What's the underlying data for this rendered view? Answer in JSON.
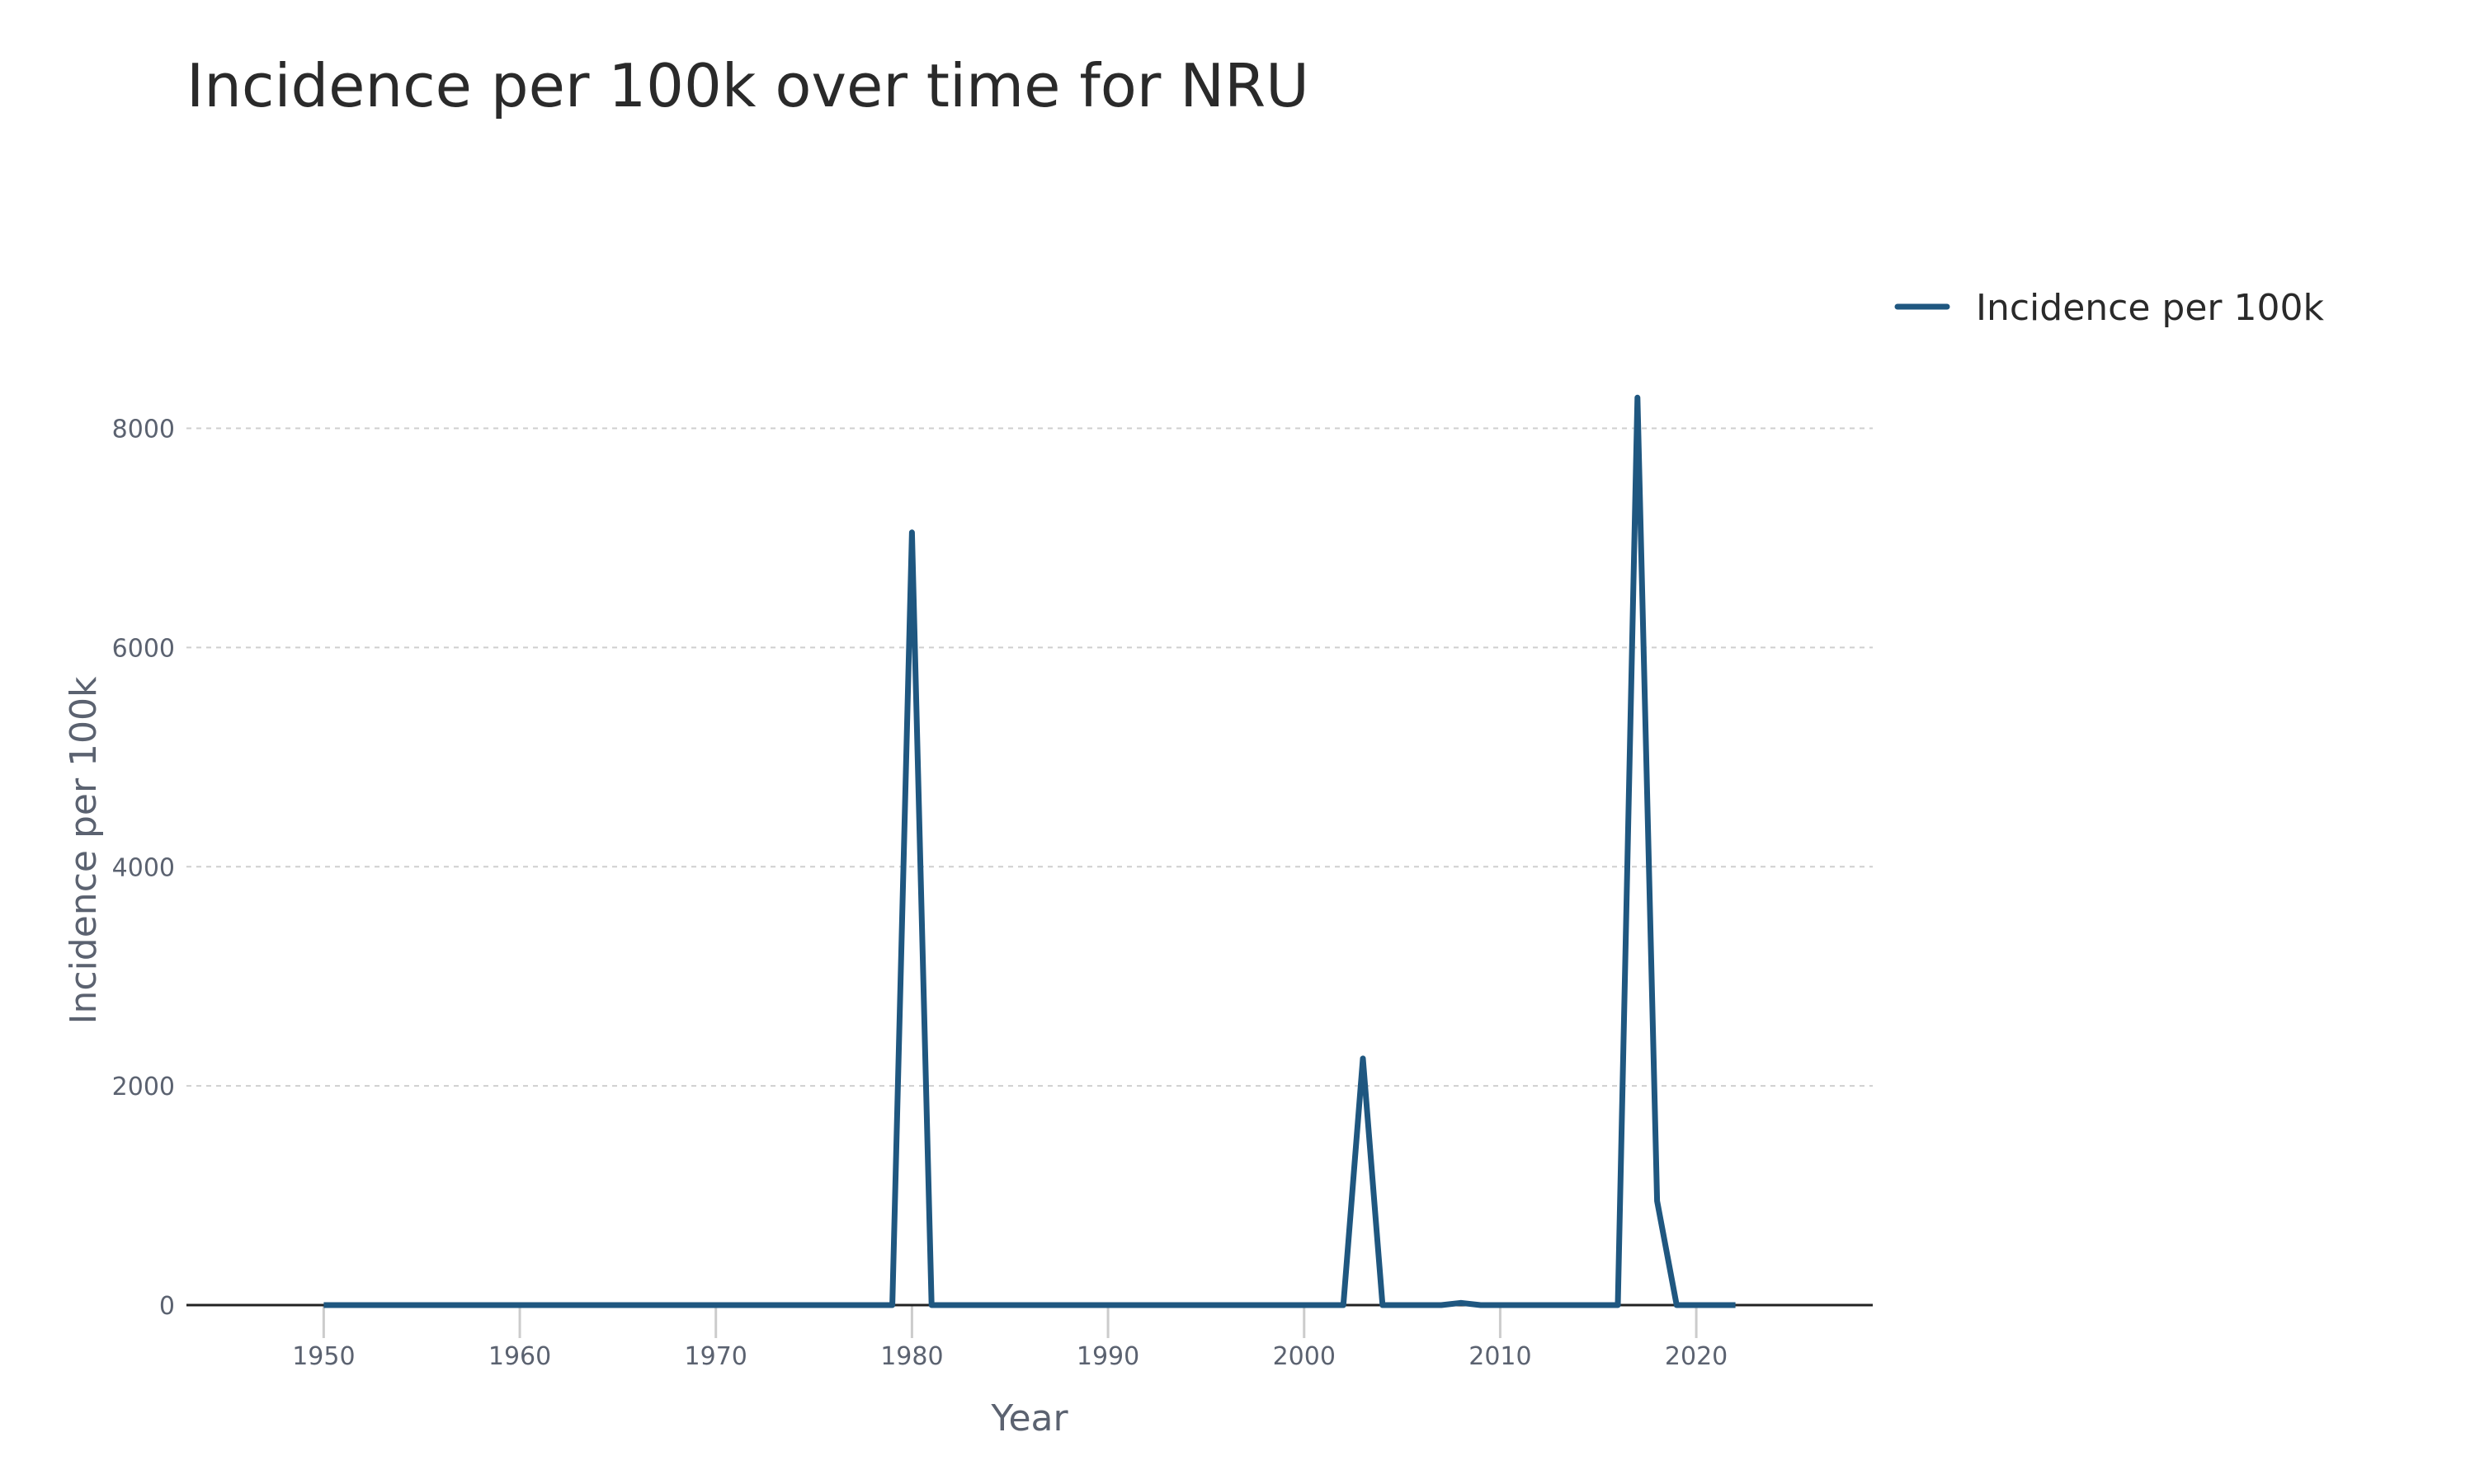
{
  "chart_data": {
    "type": "line",
    "title": "Incidence per 100k over time for NRU",
    "xlabel": "Year",
    "ylabel": "Incidence per 100k",
    "xlim": [
      1943,
      2029
    ],
    "ylim": [
      0,
      9200
    ],
    "x_ticks": [
      1950,
      1960,
      1970,
      1980,
      1990,
      2000,
      2010,
      2020
    ],
    "y_ticks": [
      0,
      2000,
      4000,
      6000,
      8000
    ],
    "grid": "horizontal-dashed",
    "legend_position": "top-right-outside",
    "series": [
      {
        "name": "Incidence per 100k",
        "color": "#1f5780",
        "x": [
          1950,
          1979,
          1980,
          1981,
          2002,
          2003,
          2004,
          2007,
          2008,
          2009,
          2016,
          2017,
          2018,
          2019,
          2022
        ],
        "y": [
          0,
          0,
          7050,
          0,
          0,
          2250,
          0,
          0,
          20,
          0,
          0,
          8280,
          950,
          0,
          0
        ]
      }
    ]
  }
}
